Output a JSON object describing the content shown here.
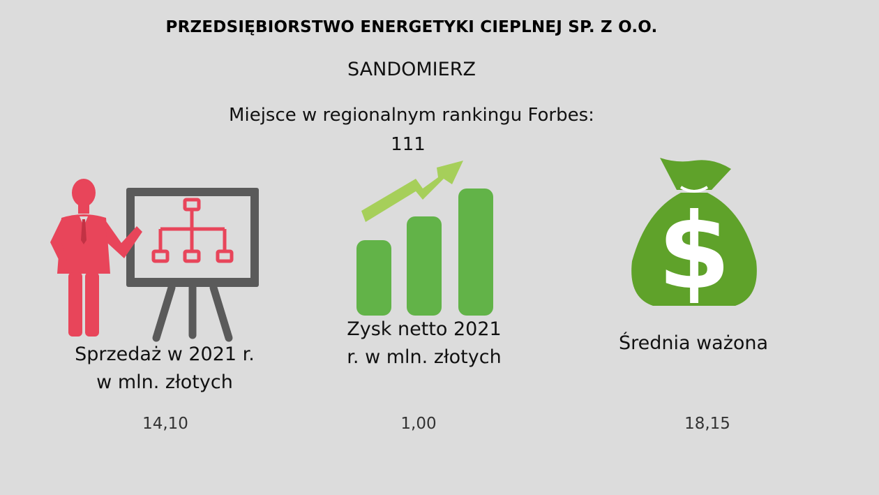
{
  "header": {
    "company": "PRZEDSIĘBIORSTWO ENERGETYKI CIEPLNEJ SP. Z O.O.",
    "city": "SANDOMIERZ",
    "ranking_label": "Miejsce w regionalnym rankingu Forbes:",
    "ranking_value": "111"
  },
  "metrics": [
    {
      "caption_line1": "Sprzedaż w 2021 r.",
      "caption_line2": "w mln. złotych",
      "value": "14,10",
      "icon": "presenter-chart-icon"
    },
    {
      "caption_line1": "Zysk netto 2021",
      "caption_line2": "r. w mln. złotych",
      "value": "1,00",
      "icon": "growth-bars-icon"
    },
    {
      "caption_line1": "Średnia ważona",
      "caption_line2": "",
      "value": "18,15",
      "icon": "money-bag-icon"
    }
  ],
  "colors": {
    "background": "#dcdcdc",
    "presenter": "#e8455a",
    "board": "#5a5a5a",
    "bars": "#62b348",
    "arrow": "#a6cf5a",
    "bag": "#5fa22a"
  }
}
